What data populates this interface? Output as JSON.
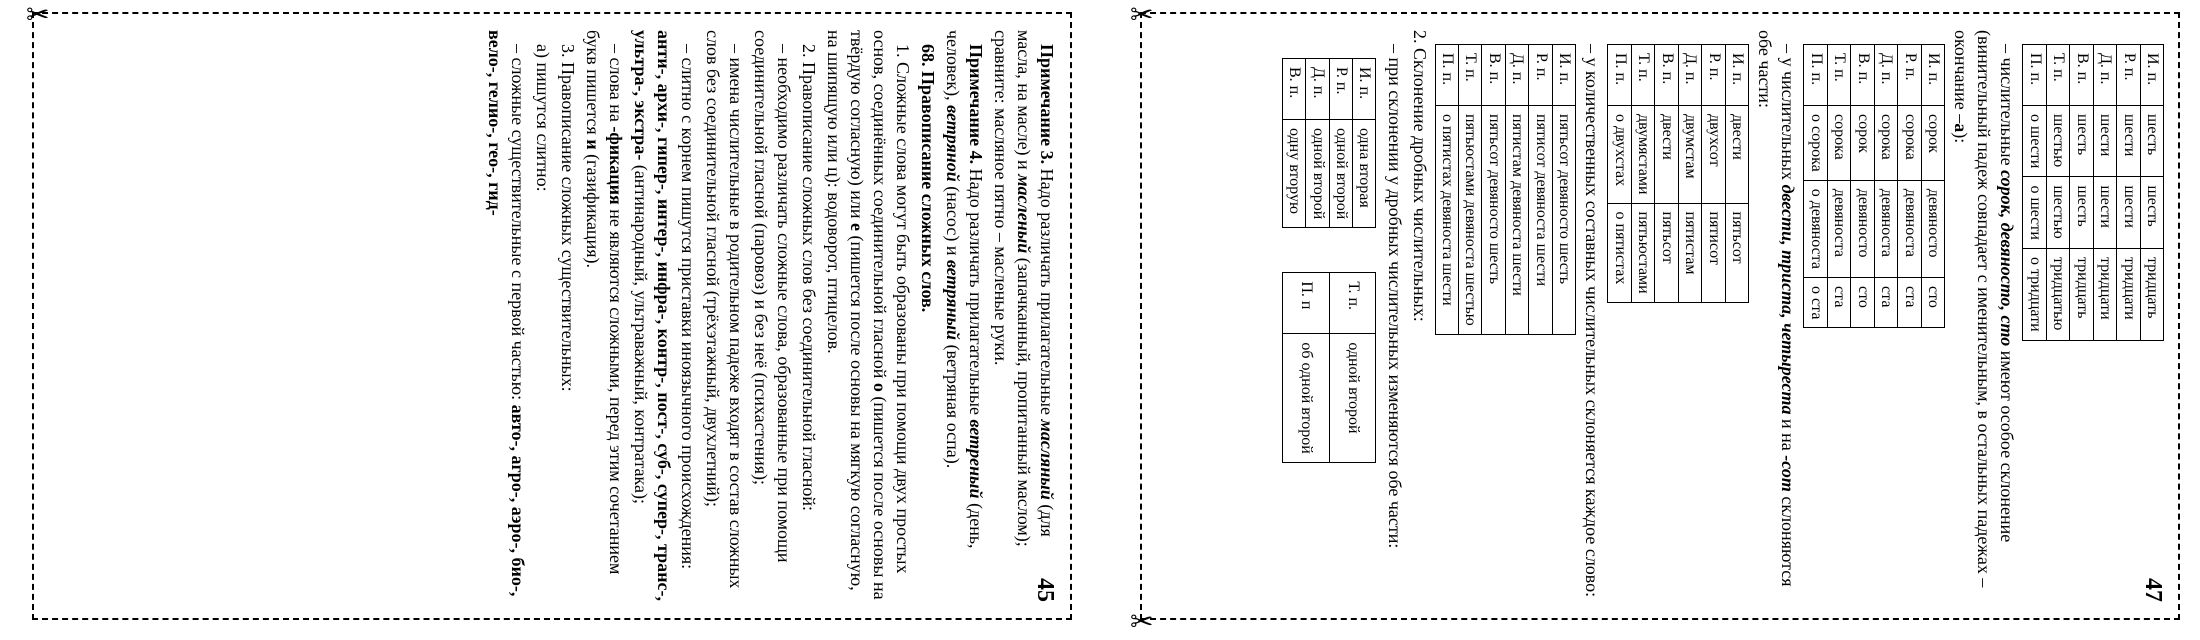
{
  "left": {
    "pagenum": "45",
    "note3_label": "Примечание 3.",
    "note3_body": " Надо различать прилагательные ",
    "note3_w1": "масляный",
    "note3_p1": " (для масла, на масле) и ",
    "note3_w2": "масленый",
    "note3_p2": " (запачканный, пропитанный маслом); сравните: масляное пятно – масленые руки.",
    "note4_label": "Примечание 4.",
    "note4_body": " Надо различать прилагательные ",
    "note4_w1": "ветреный",
    "note4_p1": " (день, человек), ",
    "note4_w2": "ветряной",
    "note4_p2": " (насос) и ",
    "note4_w3": "ветряный",
    "note4_p3": " (ветряная оспа).",
    "sec68": "68. Правописание сложных слов.",
    "para1a": "1. Сложные слова могут быть образованы при помощи двух простых основ, соединённых соединительной гласной ",
    "para1_o": "о",
    "para1b": " (пишется после основы на твёрдую согласную) или ",
    "para1_e": "е",
    "para1c": " (пишется после основы на мягкую согласную, на шипящую или ц): водоворот, птицелов.",
    "para2": "2. Правописание сложных слов без соединительной гласной:",
    "b1": "– необходимо различать сложные слова, образованные при помощи соединительной гласной (паровоз) и без неё (психастения);",
    "b2": "– имена числительные в родительном падеже входят в состав сложных слов без соединительной гласной (трёхэтажный, двухлетний);",
    "b3a": "– слитно с корнем пишутся приставки иноязычного происхождения: ",
    "b3b": "анти-, архи-, гипер-, интер-, инфра-, контр-, пост-, суб-, супер-, транс-, ультра-, экстра-",
    "b3c": " (антинародный, ультраважный, контратака);",
    "b4a": "– слова на ",
    "b4b": "-фикация",
    "b4c": " не являются сложными, перед этим сочетанием букв пишется ",
    "b4d": "и",
    "b4e": " (газификация).",
    "para3": "3. Правописание сложных существительных:",
    "para3a": "а) пишутся слитно:",
    "b5": "– сложные существительные с первой частью: ",
    "b5list": "авто-, агро-, аэро-, био-, вело-, гелио-, гео-, гид-"
  },
  "right": {
    "pagenum": "47",
    "t1": {
      "rows": [
        [
          "И. п.",
          "шесть",
          "шесть",
          "тридцать"
        ],
        [
          "Р. п.",
          "шести",
          "шести",
          "тридцати"
        ],
        [
          "Д. п.",
          "шести",
          "шести",
          "тридцати"
        ],
        [
          "В. п.",
          "шесть",
          "шесть",
          "тридцать"
        ],
        [
          "Т. п.",
          "шестью",
          "шестью",
          "тридцатью"
        ],
        [
          "П. п.",
          "о шести",
          "о шести",
          "о тридцати"
        ]
      ]
    },
    "p1a": "– числительные ",
    "p1b": "сорок, девяносто, сто",
    "p1c": " имеют особое склонение (винительный падеж совпадает с именительным, в остальных падежах – окончание –",
    "p1d": "а",
    "p1e": "):",
    "t2": {
      "rows": [
        [
          "И. п.",
          "сорок",
          "девяносто",
          "сто"
        ],
        [
          "Р. п.",
          "сорока",
          "девяноста",
          "ста"
        ],
        [
          "Д. п.",
          "сорока",
          "девяноста",
          "ста"
        ],
        [
          "В. п.",
          "сорок",
          "девяносто",
          "сто"
        ],
        [
          "Т. п.",
          "сорока",
          "девяноста",
          "ста"
        ],
        [
          "П. п.",
          "о сорока",
          "о девяноста",
          "о ста"
        ]
      ]
    },
    "p2a": "– у числительных ",
    "p2b": "двести, триста, четыреста",
    "p2c": " и на ",
    "p2d": "-сот",
    "p2e": " склоняются обе части:",
    "t3": {
      "rows": [
        [
          "И. п.",
          "двести",
          "пятьсот"
        ],
        [
          "Р. п.",
          "двухсот",
          "пятисот"
        ],
        [
          "Д. п.",
          "двумстам",
          "пятистам"
        ],
        [
          "В. п.",
          "двести",
          "пятьсот"
        ],
        [
          "Т. п.",
          "двумястами",
          "пятьюстами"
        ],
        [
          "П. п.",
          "о двухстах",
          "о пятистах"
        ]
      ]
    },
    "p3": "– у количественных составных числительных склоняется каждое слово:",
    "t4": {
      "rows": [
        [
          "И. п.",
          "пятьсот девяносто шесть"
        ],
        [
          "Р. п.",
          "пятисот девяноста шести"
        ],
        [
          "Д. п.",
          "пятистам девяноста шести"
        ],
        [
          "В. п.",
          "пятьсот девяносто шесть"
        ],
        [
          "Т. п.",
          "пятьюстами девяноста шестью"
        ],
        [
          "П. п.",
          "о пятистах девяноста шести"
        ]
      ]
    },
    "sec2": "2. Склонение дробных числительных:",
    "p4": "– при склонении у дробных числительных изменяются обе части:",
    "t5": {
      "rows": [
        [
          "И. п.",
          "одна вторая"
        ],
        [
          "Р. п.",
          "одной второй"
        ],
        [
          "Д. п.",
          "одной второй"
        ],
        [
          "В. п.",
          "одну вторую"
        ]
      ]
    },
    "t6": {
      "rows": [
        [
          "Т. п.",
          "одной второй"
        ],
        [
          "П. п",
          "об одной второй"
        ]
      ]
    }
  }
}
